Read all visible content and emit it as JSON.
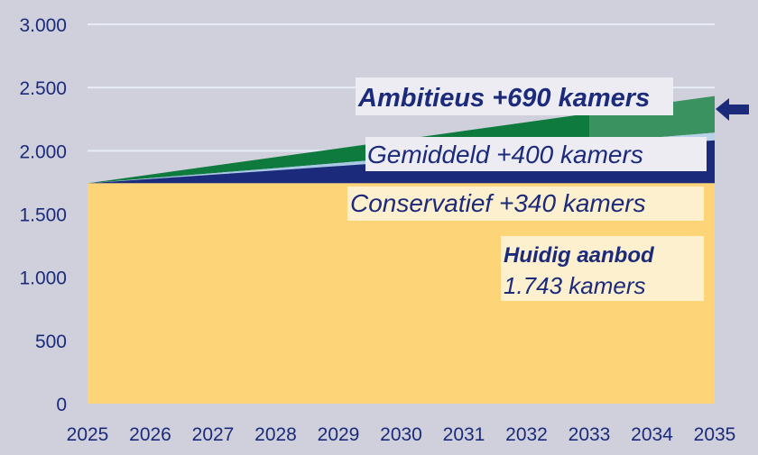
{
  "chart_data": {
    "type": "area",
    "x": [
      "2025",
      "2026",
      "2027",
      "2028",
      "2029",
      "2030",
      "2031",
      "2032",
      "2033",
      "2034",
      "2035"
    ],
    "ylim": [
      0,
      3000
    ],
    "yticks": [
      {
        "value": 0,
        "label": "0"
      },
      {
        "value": 500,
        "label": "500"
      },
      {
        "value": 1000,
        "label": "1.000"
      },
      {
        "value": 1500,
        "label": "1.500"
      },
      {
        "value": 2000,
        "label": "2.000"
      },
      {
        "value": 2500,
        "label": "2.500"
      },
      {
        "value": 3000,
        "label": "3.000"
      }
    ],
    "grid": true,
    "series": [
      {
        "name": "Huidig aanbod",
        "color": "#fdd477",
        "values": [
          1743,
          1743,
          1743,
          1743,
          1743,
          1743,
          1743,
          1743,
          1743,
          1743,
          1743
        ]
      },
      {
        "name": "Conservatief",
        "color": "#1b2a7a",
        "values": [
          1743,
          1777,
          1811,
          1845,
          1879,
          1913,
          1947,
          1981,
          2015,
          2049,
          2083
        ]
      },
      {
        "name": "Gemiddeld",
        "color": "#a9c8e6",
        "values": [
          1743,
          1783,
          1823,
          1863,
          1903,
          1943,
          1983,
          2023,
          2063,
          2103,
          2143
        ]
      },
      {
        "name": "Ambitieus",
        "color": "#0e7a3e",
        "values": [
          1743,
          1812,
          1881,
          1950,
          2019,
          2088,
          2157,
          2226,
          2295,
          2364,
          2433
        ]
      }
    ],
    "labels": {
      "ambitieus": "Ambitieus +690 kamers",
      "gemiddeld": "Gemiddeld +400 kamers",
      "conservatief": "Conservatief +340 kamers",
      "huidig_title": "Huidig aanbod",
      "huidig_value": "1.743 kamers"
    },
    "label_bg": {
      "ambitieus": "#ececf2",
      "gemiddeld": "#ececf2",
      "conservatief": "#fdf0cf",
      "huidig": "#fdf0cf"
    },
    "arrow_color": "#1b2a7a",
    "label_color": "#1b2a7a",
    "grid_color": "#e8ecf8",
    "overlay_color": "#ffffff"
  }
}
